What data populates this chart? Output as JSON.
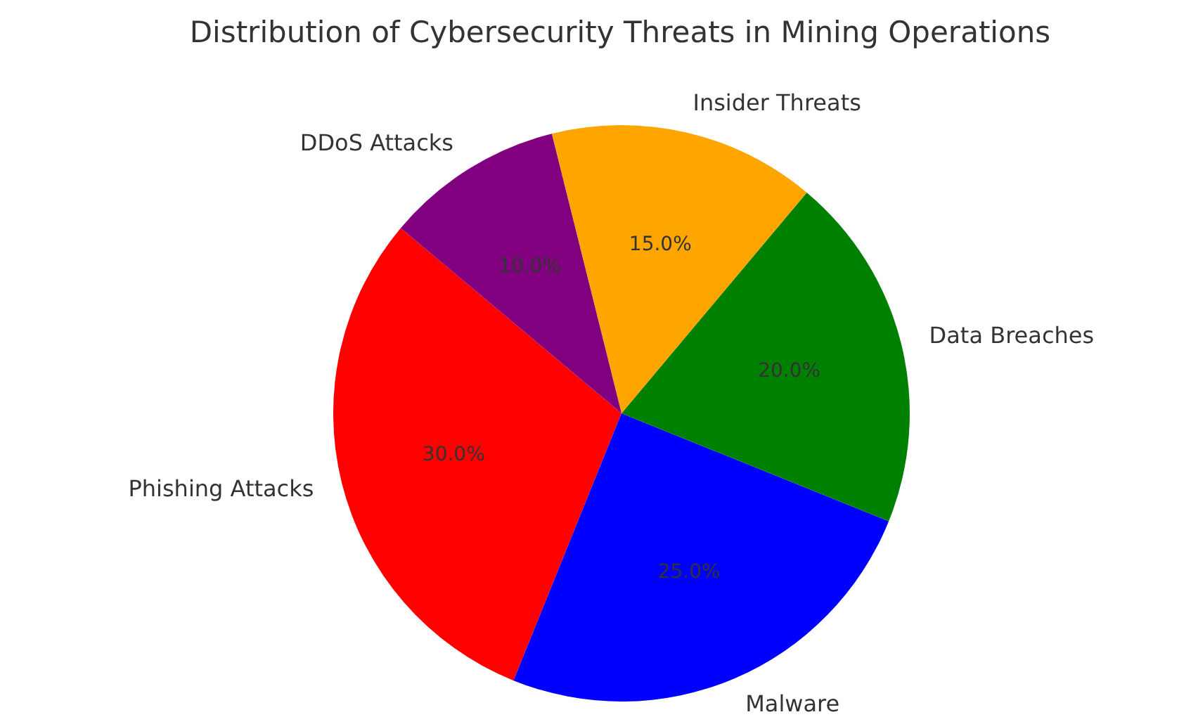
{
  "chart_data": {
    "type": "pie",
    "title": "Distribution of Cybersecurity Threats in Mining Operations",
    "categories": [
      "Phishing Attacks",
      "Malware",
      "Data Breaches",
      "Insider Threats",
      "DDoS Attacks"
    ],
    "values": [
      30,
      25,
      20,
      15,
      10
    ],
    "colors": [
      "#ff0000",
      "#0000ff",
      "#008000",
      "#ffa500",
      "#800080"
    ],
    "value_labels": [
      "30.0%",
      "25.0%",
      "20.0%",
      "15.0%",
      "10.0%"
    ]
  }
}
